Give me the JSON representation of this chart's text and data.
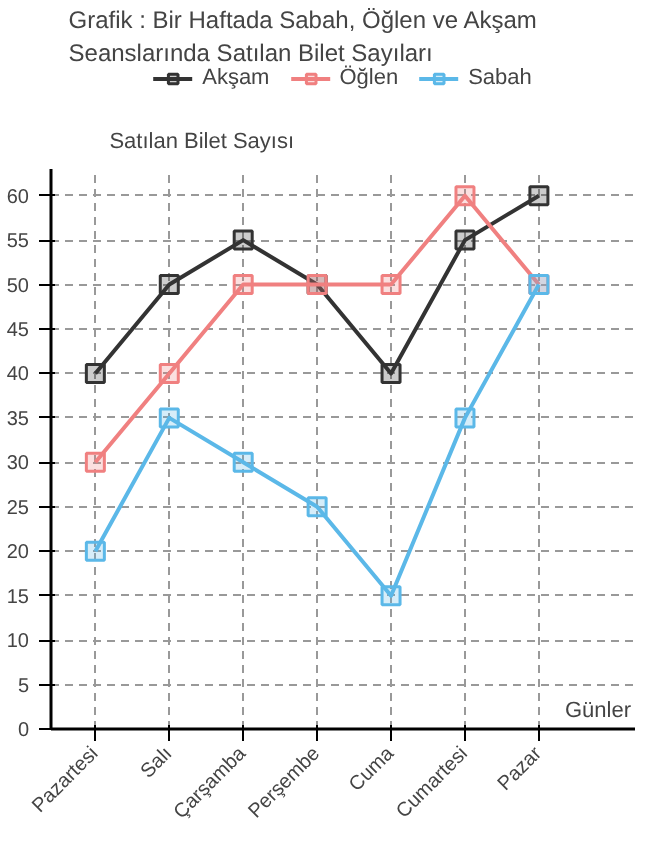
{
  "chart_data": {
    "type": "line",
    "title": "Grafik : Bir Haftada Sabah, Öğlen ve Akşam\nSeanslarında Satılan Bilet Sayıları",
    "xlabel": "Günler",
    "ylabel": "Satılan Bilet Sayısı",
    "categories": [
      "Pazartesi",
      "Salı",
      "Çarşamba",
      "Perşembe",
      "Cuma",
      "Cumartesi",
      "Pazar"
    ],
    "series": [
      {
        "name": "Akşam",
        "color": "#333333",
        "values": [
          40,
          50,
          55,
          50,
          40,
          55,
          60
        ]
      },
      {
        "name": "Öğlen",
        "color": "#f08080",
        "values": [
          30,
          40,
          50,
          50,
          50,
          60,
          50
        ]
      },
      {
        "name": "Sabah",
        "color": "#5bb8e8",
        "values": [
          20,
          35,
          30,
          25,
          15,
          35,
          50
        ]
      }
    ],
    "ylim": [
      0,
      63
    ],
    "yticks": [
      0,
      5,
      10,
      15,
      20,
      25,
      30,
      35,
      40,
      45,
      50,
      55,
      60
    ],
    "grid": true,
    "legend": "top",
    "marker": "square",
    "line_style": "solid"
  }
}
